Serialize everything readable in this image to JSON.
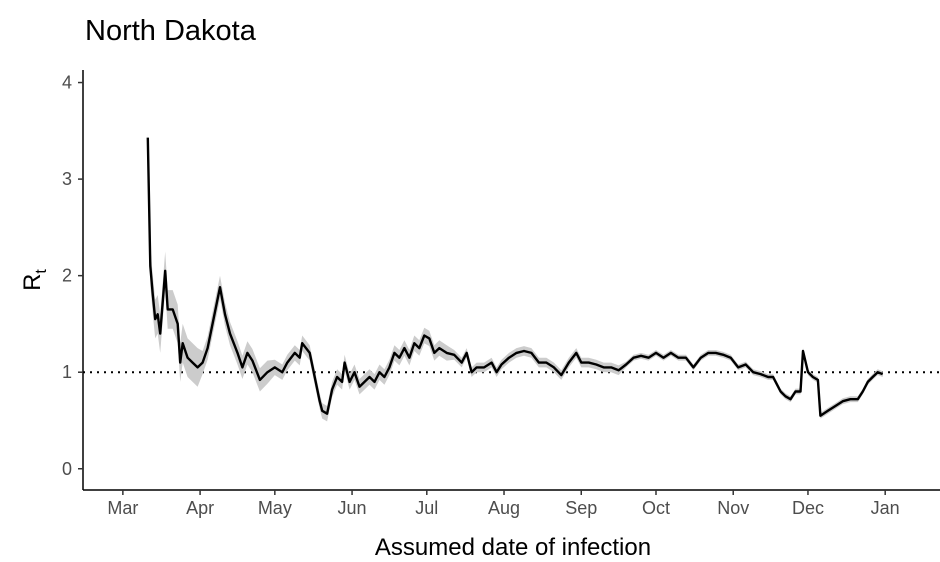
{
  "chart_data": {
    "type": "line",
    "title": "North Dakota",
    "xlabel": "Assumed date of infection",
    "ylabel": "R",
    "ylabel_subscript": "t",
    "xlim": [
      -16,
      328
    ],
    "ylim": [
      -0.22,
      4.13
    ],
    "xticks": [
      {
        "value": 0,
        "label": "Mar"
      },
      {
        "value": 31,
        "label": "Apr"
      },
      {
        "value": 61,
        "label": "May"
      },
      {
        "value": 92,
        "label": "Jun"
      },
      {
        "value": 122,
        "label": "Jul"
      },
      {
        "value": 153,
        "label": "Aug"
      },
      {
        "value": 184,
        "label": "Sep"
      },
      {
        "value": 214,
        "label": "Oct"
      },
      {
        "value": 245,
        "label": "Nov"
      },
      {
        "value": 275,
        "label": "Dec"
      },
      {
        "value": 306,
        "label": "Jan"
      }
    ],
    "yticks": [
      0,
      1,
      2,
      3,
      4
    ],
    "hline": 1,
    "band_color": "#cccccc",
    "series": [
      {
        "color": "#000000",
        "x": [
          10,
          11,
          12,
          13,
          14,
          15,
          17,
          18,
          20,
          22,
          23,
          24,
          26,
          28,
          30,
          32,
          34,
          39,
          41,
          43,
          46,
          48,
          50,
          52,
          55,
          58,
          61,
          64,
          66,
          69,
          71,
          72,
          75,
          77,
          79,
          80,
          82,
          84,
          86,
          88,
          89,
          91,
          93,
          95,
          97,
          99,
          101,
          103,
          105,
          107,
          109,
          111,
          113,
          115,
          117,
          119,
          121,
          123,
          125,
          127,
          130,
          133,
          136,
          138,
          140,
          142,
          145,
          148,
          150,
          152,
          155,
          158,
          161,
          164,
          167,
          170,
          173,
          176,
          179,
          182,
          184,
          187,
          190,
          193,
          196,
          199,
          202,
          205,
          208,
          211,
          214,
          217,
          220,
          223,
          226,
          229,
          232,
          235,
          238,
          241,
          244,
          247,
          250,
          253,
          256,
          259,
          261,
          264,
          266,
          268,
          270,
          272,
          273,
          275,
          277,
          279,
          280,
          283,
          286,
          289,
          292,
          295,
          297,
          299,
          301,
          303,
          305
        ],
        "values": [
          3.43,
          2.1,
          1.8,
          1.55,
          1.6,
          1.4,
          2.05,
          1.65,
          1.65,
          1.5,
          1.1,
          1.3,
          1.15,
          1.1,
          1.05,
          1.1,
          1.25,
          1.88,
          1.6,
          1.4,
          1.2,
          1.05,
          1.2,
          1.12,
          0.92,
          1.0,
          1.05,
          1.0,
          1.1,
          1.2,
          1.15,
          1.3,
          1.2,
          0.95,
          0.7,
          0.6,
          0.57,
          0.82,
          0.95,
          0.9,
          1.1,
          0.9,
          1.0,
          0.85,
          0.9,
          0.95,
          0.9,
          1.0,
          0.95,
          1.05,
          1.2,
          1.15,
          1.25,
          1.15,
          1.3,
          1.25,
          1.38,
          1.35,
          1.2,
          1.25,
          1.2,
          1.18,
          1.1,
          1.2,
          1.0,
          1.05,
          1.05,
          1.1,
          1.0,
          1.08,
          1.15,
          1.2,
          1.22,
          1.2,
          1.1,
          1.1,
          1.05,
          0.97,
          1.1,
          1.2,
          1.1,
          1.1,
          1.08,
          1.05,
          1.05,
          1.02,
          1.08,
          1.15,
          1.17,
          1.15,
          1.2,
          1.15,
          1.2,
          1.15,
          1.15,
          1.05,
          1.15,
          1.2,
          1.2,
          1.18,
          1.15,
          1.05,
          1.08,
          1.0,
          0.98,
          0.95,
          0.95,
          0.8,
          0.75,
          0.72,
          0.8,
          0.8,
          1.22,
          1.0,
          0.95,
          0.92,
          0.55,
          0.6,
          0.65,
          0.7,
          0.72,
          0.72,
          0.8,
          0.9,
          0.95,
          1.0,
          0.98
        ],
        "lower": [
          3.38,
          1.9,
          1.6,
          1.35,
          1.4,
          1.2,
          1.85,
          1.45,
          1.45,
          1.3,
          0.9,
          1.1,
          0.95,
          0.9,
          0.85,
          0.98,
          1.13,
          1.76,
          1.48,
          1.28,
          1.08,
          0.93,
          1.08,
          1.0,
          0.8,
          0.88,
          0.97,
          0.92,
          1.02,
          1.12,
          1.07,
          1.22,
          1.12,
          0.87,
          0.62,
          0.52,
          0.49,
          0.74,
          0.87,
          0.82,
          1.02,
          0.82,
          0.92,
          0.77,
          0.82,
          0.87,
          0.82,
          0.92,
          0.87,
          0.97,
          1.12,
          1.07,
          1.17,
          1.07,
          1.22,
          1.17,
          1.3,
          1.27,
          1.12,
          1.17,
          1.12,
          1.13,
          1.05,
          1.15,
          0.95,
          1.0,
          1.0,
          1.05,
          0.95,
          1.03,
          1.1,
          1.15,
          1.17,
          1.15,
          1.05,
          1.05,
          1.0,
          0.92,
          1.05,
          1.15,
          1.05,
          1.05,
          1.03,
          1.0,
          1.0,
          0.97,
          1.05,
          1.12,
          1.14,
          1.12,
          1.17,
          1.12,
          1.17,
          1.12,
          1.12,
          1.02,
          1.12,
          1.17,
          1.17,
          1.15,
          1.12,
          1.02,
          1.05,
          0.97,
          0.95,
          0.92,
          0.92,
          0.77,
          0.72,
          0.69,
          0.77,
          0.77,
          1.19,
          0.97,
          0.92,
          0.89,
          0.52,
          0.57,
          0.62,
          0.67,
          0.69,
          0.69,
          0.77,
          0.87,
          0.92,
          0.97,
          0.95
        ],
        "upper": [
          3.48,
          2.3,
          2.0,
          1.75,
          1.8,
          1.6,
          2.25,
          1.85,
          1.85,
          1.7,
          1.3,
          1.5,
          1.35,
          1.3,
          1.25,
          1.22,
          1.37,
          2.0,
          1.72,
          1.52,
          1.32,
          1.17,
          1.32,
          1.24,
          1.04,
          1.12,
          1.13,
          1.08,
          1.18,
          1.28,
          1.23,
          1.38,
          1.28,
          1.03,
          0.78,
          0.68,
          0.65,
          0.9,
          1.03,
          0.98,
          1.18,
          0.98,
          1.08,
          0.93,
          0.98,
          1.03,
          0.98,
          1.08,
          1.03,
          1.13,
          1.28,
          1.23,
          1.33,
          1.23,
          1.38,
          1.33,
          1.46,
          1.43,
          1.28,
          1.33,
          1.28,
          1.23,
          1.15,
          1.25,
          1.05,
          1.1,
          1.1,
          1.15,
          1.05,
          1.13,
          1.2,
          1.25,
          1.27,
          1.25,
          1.15,
          1.15,
          1.1,
          1.02,
          1.15,
          1.25,
          1.15,
          1.15,
          1.13,
          1.1,
          1.1,
          1.07,
          1.11,
          1.18,
          1.2,
          1.18,
          1.23,
          1.18,
          1.23,
          1.18,
          1.18,
          1.08,
          1.18,
          1.23,
          1.23,
          1.21,
          1.18,
          1.08,
          1.11,
          1.03,
          1.01,
          0.98,
          0.98,
          0.83,
          0.78,
          0.75,
          0.83,
          0.83,
          1.25,
          1.03,
          0.98,
          0.95,
          0.58,
          0.63,
          0.68,
          0.73,
          0.75,
          0.75,
          0.83,
          0.93,
          0.98,
          1.03,
          1.01
        ]
      }
    ]
  }
}
